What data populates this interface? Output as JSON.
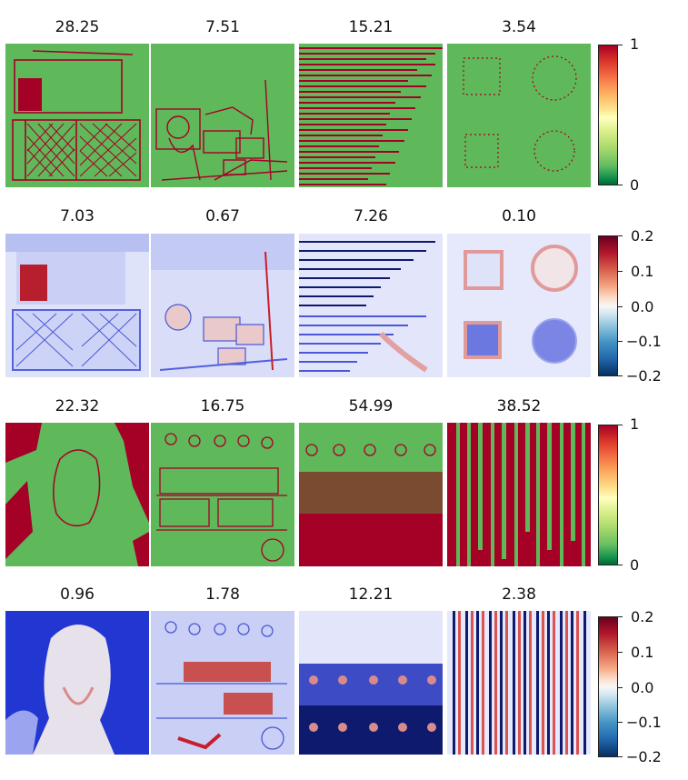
{
  "titles": [
    [
      "28.25",
      "7.51",
      "15.21",
      "3.54"
    ],
    [
      "7.03",
      "0.67",
      "7.26",
      "0.10"
    ],
    [
      "22.32",
      "16.75",
      "54.99",
      "38.52"
    ],
    [
      "0.96",
      "1.78",
      "12.21",
      "2.38"
    ]
  ],
  "colorbars": [
    {
      "kind": "binary",
      "ticks": [
        "1",
        "0"
      ]
    },
    {
      "kind": "diff",
      "ticks": [
        "0.2",
        "0.1",
        "0.0",
        "−0.1",
        "−0.2"
      ]
    },
    {
      "kind": "binary",
      "ticks": [
        "1",
        "0"
      ]
    },
    {
      "kind": "diff",
      "ticks": [
        "0.2",
        "0.1",
        "0.0",
        "−0.1",
        "−0.2"
      ]
    }
  ],
  "colors": {
    "binary_background": "#5fb85a",
    "binary_mark": "#a50026",
    "diff_background": "#eef0fb",
    "diff_blue": "#3a4bd8",
    "diff_red": "#c81e2a",
    "diff_dark": "#0d1a6e"
  }
}
